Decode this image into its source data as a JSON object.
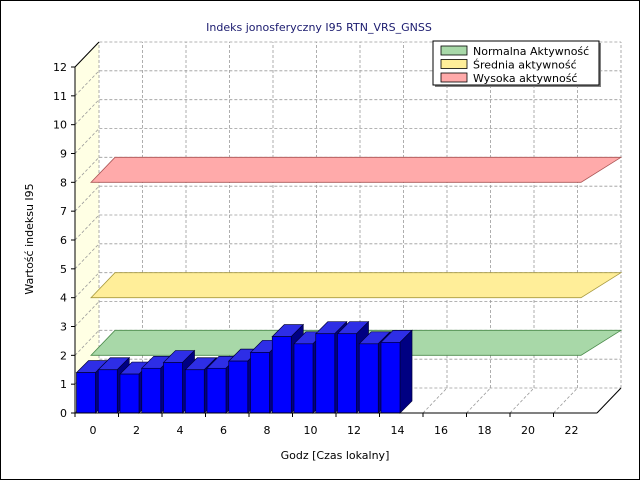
{
  "chart_data": {
    "type": "bar",
    "title": "Indeks jonosferyczny I95 RTN_VRS_GNSS",
    "xlabel": "Godz [Czas lokalny]",
    "ylabel": "Wartość indeksu I95",
    "ylim": [
      0,
      12
    ],
    "xlim": [
      0,
      24
    ],
    "x_ticks": [
      "0",
      "2",
      "4",
      "6",
      "8",
      "10",
      "12",
      "14",
      "16",
      "18",
      "20",
      "22"
    ],
    "y_ticks": [
      "0",
      "1",
      "2",
      "3",
      "4",
      "5",
      "6",
      "7",
      "8",
      "9",
      "10",
      "11",
      "12"
    ],
    "grid": true,
    "three_d": true,
    "legend_position": "top-right",
    "x": [
      0,
      1,
      2,
      3,
      4,
      5,
      6,
      7,
      8,
      9,
      10,
      11,
      12,
      13,
      14
    ],
    "values": [
      1.4,
      1.5,
      1.35,
      1.55,
      1.75,
      1.5,
      1.55,
      1.8,
      2.1,
      2.65,
      2.4,
      2.75,
      2.75,
      2.4,
      2.45
    ],
    "bar_color": "#0000ff",
    "bands": [
      {
        "name": "Normalna Aktywność",
        "y": 2,
        "color": "#a8d8a8",
        "edge": "#4a8a4a"
      },
      {
        "name": "Średnia aktywność",
        "y": 4,
        "color": "#ffee99",
        "edge": "#a89a40"
      },
      {
        "name": "Wysoka aktywność",
        "y": 8,
        "color": "#ffaaaa",
        "edge": "#aa5555"
      }
    ]
  }
}
